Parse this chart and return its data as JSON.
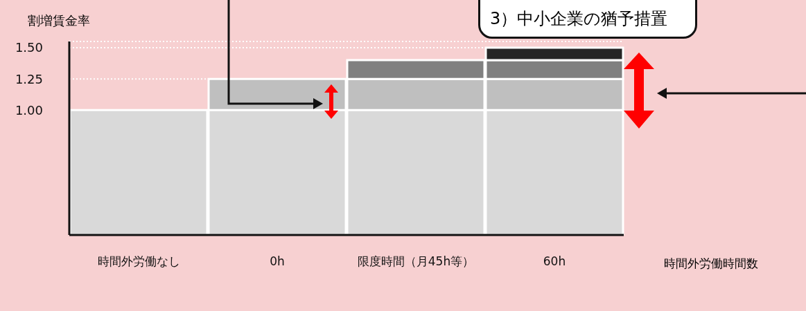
{
  "chart_data": {
    "type": "bar",
    "stacked": true,
    "xlabel": "時間外労働時間数",
    "ylabel": "割増賃金率",
    "categories": [
      "時間外労働なし",
      "0h",
      "限度時間（月45h等）",
      "60h"
    ],
    "series": [
      {
        "color": "#d9d9d9",
        "values": [
          1.0,
          1.0,
          1.0,
          1.0
        ]
      },
      {
        "color": "#bfbfbf",
        "values": [
          null,
          0.25,
          0.25,
          0.25
        ]
      },
      {
        "color": "#808080",
        "values": [
          null,
          null,
          0.15,
          0.15
        ]
      },
      {
        "color": "#262626",
        "values": [
          null,
          null,
          null,
          0.1
        ]
      }
    ],
    "ylim": [
      0,
      1.55
    ],
    "yticks": [
      {
        "value": 1.0,
        "label": "1.00"
      },
      {
        "value": 1.25,
        "label": "1.25"
      },
      {
        "value": 1.5,
        "label": "1.50"
      }
    ],
    "grid": "y",
    "legend": false,
    "annotations": [
      "3）中小企業の猶予措置"
    ]
  }
}
